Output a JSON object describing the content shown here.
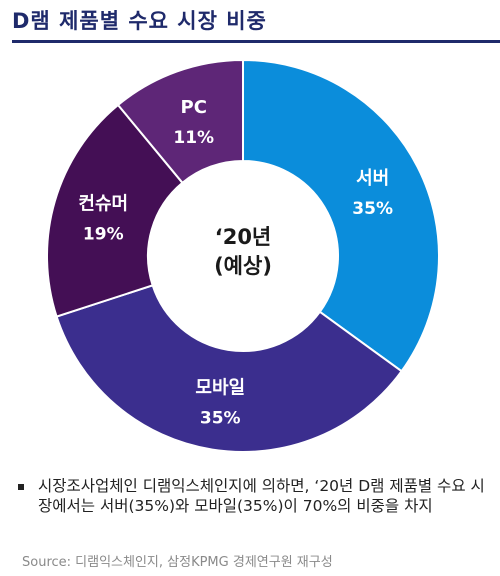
{
  "header": {
    "title": "D램 제품별 수요 시장 비중"
  },
  "chart_data": {
    "type": "pie",
    "donut": true,
    "center_label": [
      "‘20년",
      "(예상)"
    ],
    "categories": [
      "서버",
      "모바일",
      "컨슈머",
      "PC"
    ],
    "values": [
      35,
      35,
      19,
      11
    ],
    "value_labels": [
      "35%",
      "35%",
      "19%",
      "11%"
    ],
    "colors": [
      "#0b8ddb",
      "#3b2e8e",
      "#440f55",
      "#5e2677"
    ],
    "legend": "none"
  },
  "note": {
    "text": "시장조사업체인 디램익스체인지에 의하면, ‘20년 D램 제품별 수요 시장에서는 서버(35%)와 모바일(35%)이 70%의 비중을 차지"
  },
  "source": {
    "text": "Source: 디램익스체인지, 삼정KPMG 경제연구원 재구성"
  }
}
